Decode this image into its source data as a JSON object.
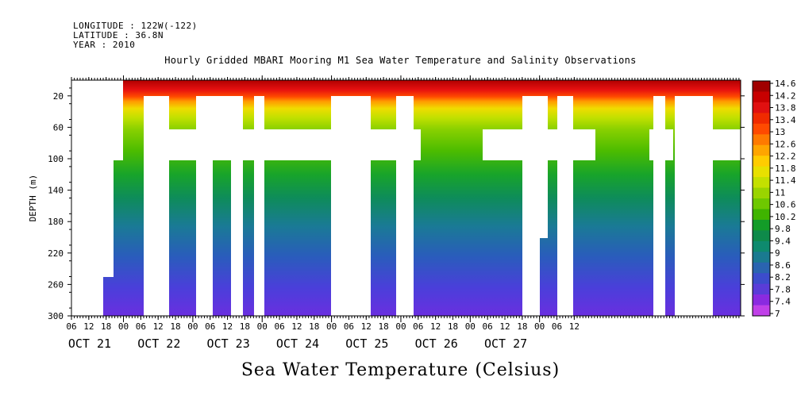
{
  "header": {
    "longitude": "LONGITUDE : 122W(-122)",
    "latitude": "LATITUDE : 36.8N",
    "year": "YEAR : 2010"
  },
  "chart_data": {
    "type": "heatmap",
    "title": "Hourly Gridded MBARI Mooring M1 Sea Water Temperature and Salinity Observations",
    "ylabel": "DEPTH (m)",
    "bottom_label": "Sea Water Temperature (Celsius)",
    "y_ticks": [
      20,
      60,
      100,
      140,
      180,
      220,
      260,
      300
    ],
    "ylim": [
      300,
      0
    ],
    "x_hour_ticks": [
      "06",
      "12",
      "18",
      "00",
      "06",
      "12",
      "18",
      "00",
      "06",
      "12",
      "18",
      "00",
      "06",
      "12",
      "18",
      "00",
      "06",
      "12",
      "18",
      "00",
      "06",
      "12",
      "18",
      "00",
      "06",
      "12",
      "18",
      "00",
      "06",
      "12"
    ],
    "x_day_labels": [
      "OCT 21",
      "OCT 22",
      "OCT 23",
      "OCT 24",
      "OCT 25",
      "OCT 26",
      "OCT 27"
    ],
    "colorbar": {
      "levels": [
        14.6,
        14.2,
        13.8,
        13.4,
        13,
        12.6,
        12.2,
        11.8,
        11.4,
        11,
        10.6,
        10.2,
        9.8,
        9.4,
        9,
        8.6,
        8.2,
        7.8,
        7.4,
        7
      ],
      "colors": [
        "#a00000",
        "#c80000",
        "#e01010",
        "#f02a00",
        "#ff4a00",
        "#ff7a00",
        "#ffa500",
        "#ffcc00",
        "#e8e000",
        "#c4e000",
        "#9ad400",
        "#6ec800",
        "#3fb400",
        "#139c28",
        "#0e8a4a",
        "#0e8a6e",
        "#1a7a90",
        "#2a64b0",
        "#3c4ccc",
        "#5a3cd8",
        "#8a2ae0",
        "#c040e8"
      ]
    },
    "data_gaps": "white regions where no observation",
    "surface_temperature_approx": 14.0,
    "bottom_temperature_approx": 8.0
  }
}
